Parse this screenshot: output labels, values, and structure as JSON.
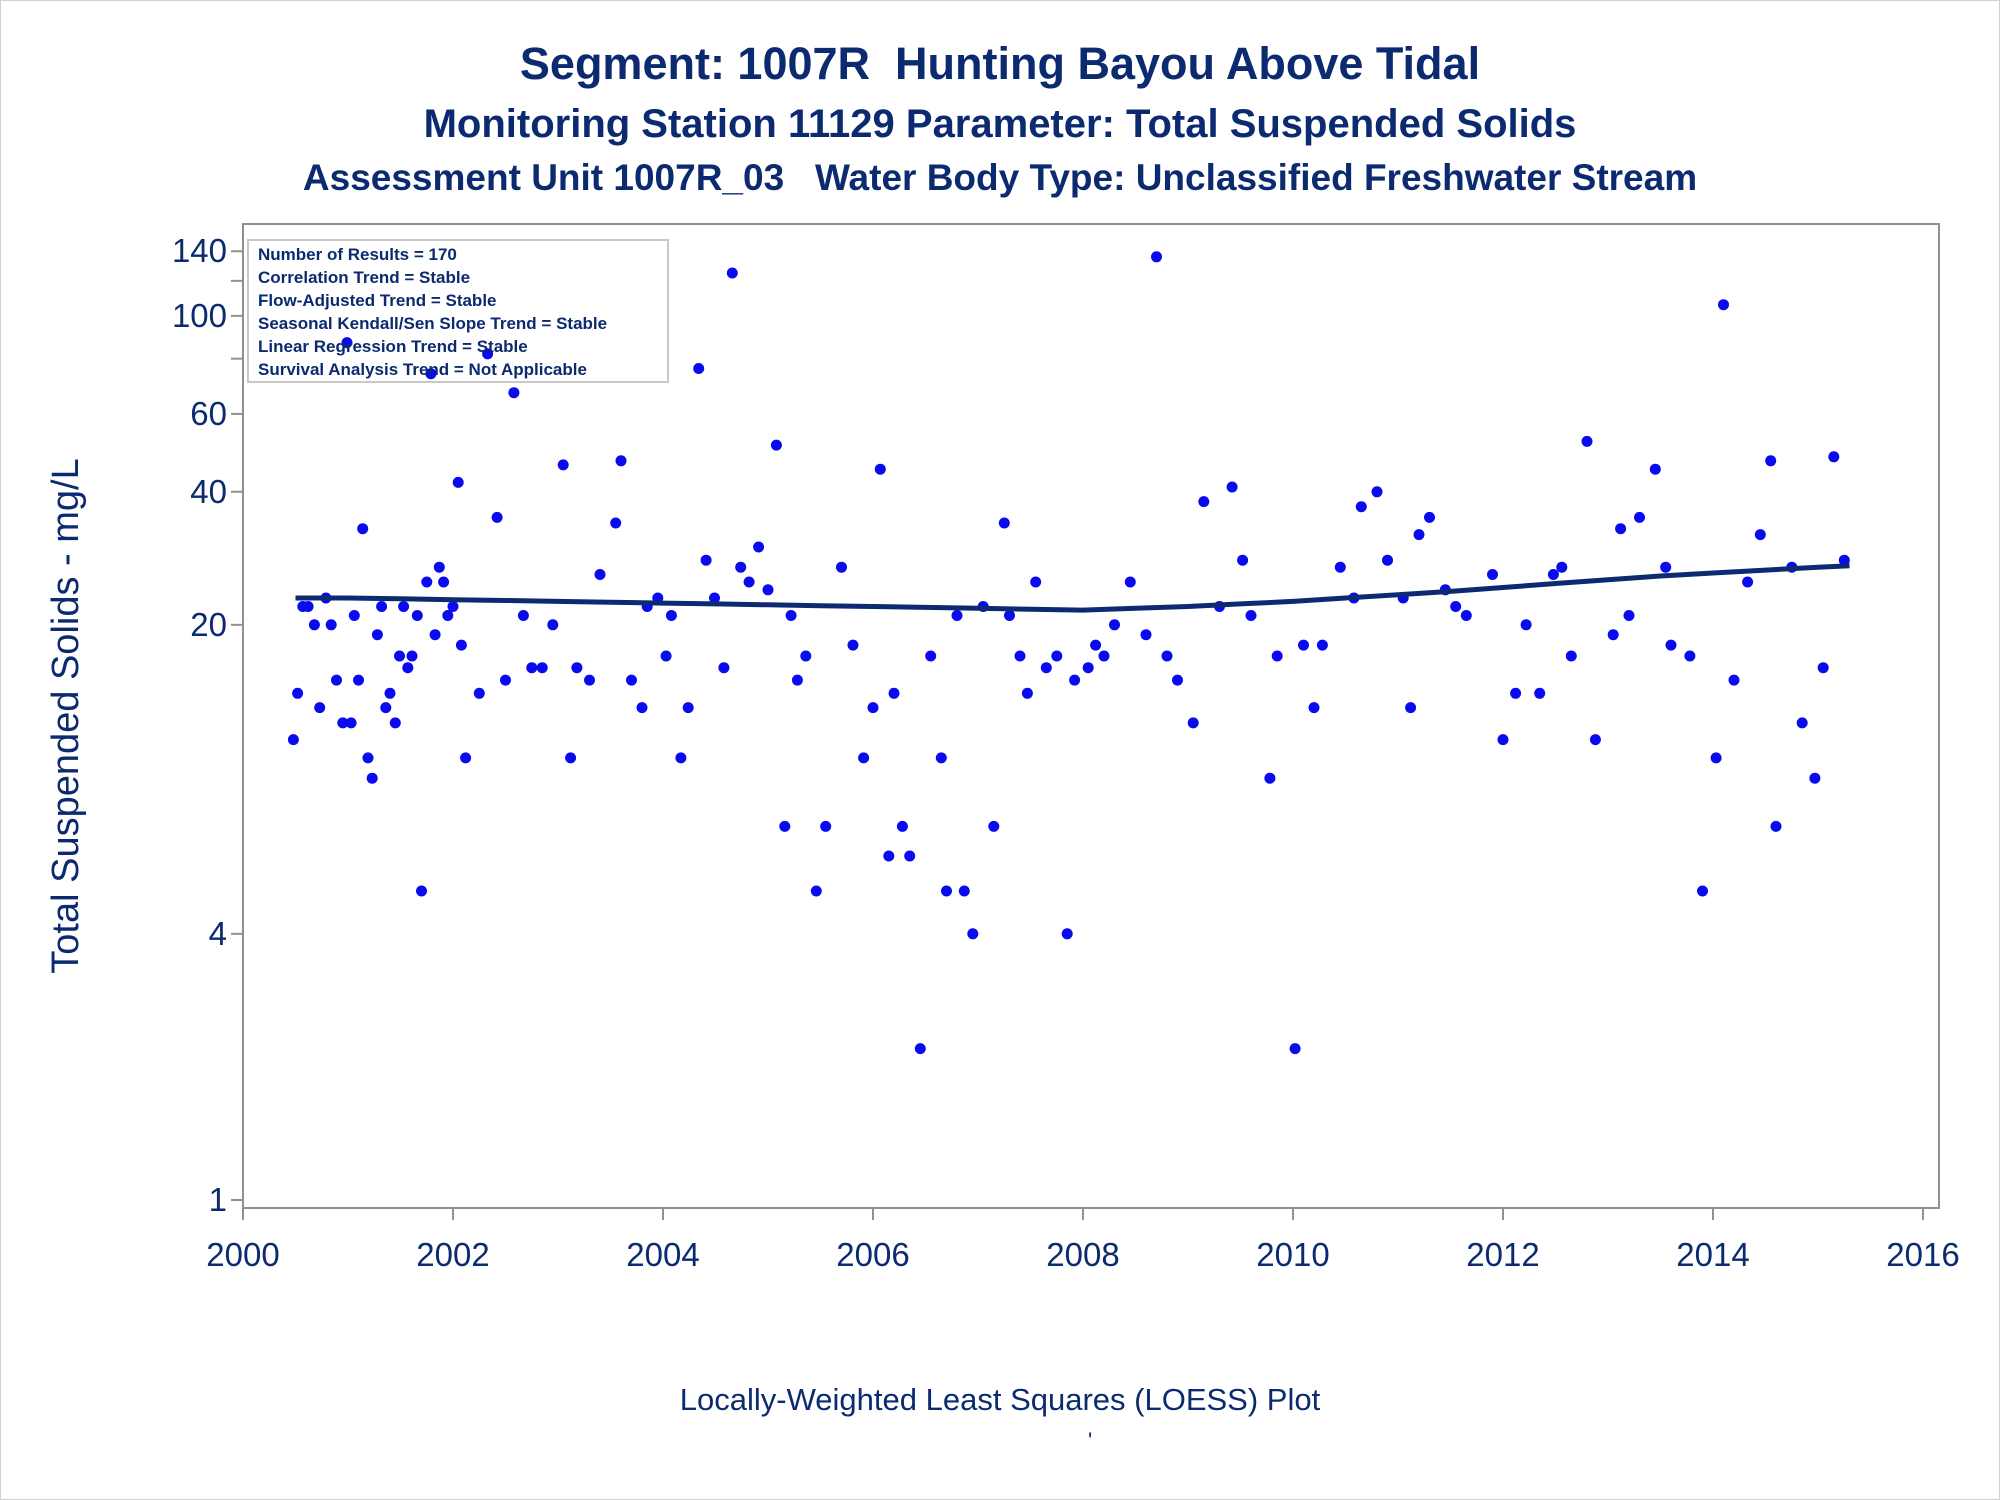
{
  "chart_data": {
    "type": "scatter",
    "title": "Segment: 1007R  Hunting Bayou Above Tidal",
    "subtitle": "Monitoring Station 11129 Parameter: Total Suspended Solids",
    "subtitle2": "Assessment Unit 1007R_03   Water Body Type: Unclassified Freshwater Stream",
    "xlabel": "",
    "ylabel": "Total Suspended Solids - mg/L",
    "footnote": "Locally-Weighted Least Squares (LOESS) Plot",
    "footnote_mark": "'",
    "yscale": "log",
    "ylim": [
      1,
      150
    ],
    "xlim": [
      2000,
      2016
    ],
    "x_ticks": [
      2000,
      2002,
      2004,
      2006,
      2008,
      2010,
      2012,
      2014,
      2016
    ],
    "y_ticks": [
      1,
      4,
      20,
      40,
      60,
      100,
      140
    ],
    "y_minor_ticks": [
      80,
      120
    ],
    "grid": false,
    "legend_placement": "top-left",
    "inset_lines": [
      "Number of Results = 170",
      "Correlation Trend = Stable",
      "Flow-Adjusted Trend = Stable",
      "Seasonal Kendall/Sen Slope Trend = Stable",
      "Linear Regression Trend = Stable",
      "Survival Analysis Trend = Not Applicable"
    ],
    "colors": {
      "points": "#0a0aee",
      "trend": "#0b2a6f",
      "text": "#0b2a6f",
      "axis": "#909090"
    },
    "series": [
      {
        "type": "scatter",
        "points": [
          [
            2000.48,
            11
          ],
          [
            2000.52,
            14
          ],
          [
            2000.57,
            22
          ],
          [
            2000.62,
            22
          ],
          [
            2000.68,
            20
          ],
          [
            2000.73,
            13
          ],
          [
            2000.79,
            23
          ],
          [
            2000.84,
            20
          ],
          [
            2000.89,
            15
          ],
          [
            2000.95,
            12
          ],
          [
            2000.99,
            87
          ],
          [
            2001.03,
            12
          ],
          [
            2001.06,
            21
          ],
          [
            2001.1,
            15
          ],
          [
            2001.14,
            33
          ],
          [
            2001.19,
            10
          ],
          [
            2001.23,
            9
          ],
          [
            2001.28,
            19
          ],
          [
            2001.32,
            22
          ],
          [
            2001.36,
            13
          ],
          [
            2001.4,
            14
          ],
          [
            2001.45,
            12
          ],
          [
            2001.49,
            17
          ],
          [
            2001.53,
            22
          ],
          [
            2001.57,
            16
          ],
          [
            2001.61,
            17
          ],
          [
            2001.66,
            21
          ],
          [
            2001.7,
            5
          ],
          [
            2001.75,
            25
          ],
          [
            2001.79,
            74
          ],
          [
            2001.83,
            19
          ],
          [
            2001.87,
            27
          ],
          [
            2001.91,
            25
          ],
          [
            2001.95,
            21
          ],
          [
            2002.0,
            22
          ],
          [
            2002.05,
            42
          ],
          [
            2002.08,
            18
          ],
          [
            2002.12,
            10
          ],
          [
            2002.25,
            14
          ],
          [
            2002.33,
            82
          ],
          [
            2002.42,
            35
          ],
          [
            2002.5,
            15
          ],
          [
            2002.58,
            67
          ],
          [
            2002.67,
            21
          ],
          [
            2002.75,
            16
          ],
          [
            2002.85,
            16
          ],
          [
            2002.95,
            20
          ],
          [
            2003.05,
            46
          ],
          [
            2003.12,
            10
          ],
          [
            2003.18,
            16
          ],
          [
            2003.3,
            15
          ],
          [
            2003.4,
            26
          ],
          [
            2003.55,
            34
          ],
          [
            2003.6,
            47
          ],
          [
            2003.7,
            15
          ],
          [
            2003.8,
            13
          ],
          [
            2003.85,
            22
          ],
          [
            2003.95,
            23
          ],
          [
            2004.03,
            17
          ],
          [
            2004.08,
            21
          ],
          [
            2004.17,
            10
          ],
          [
            2004.24,
            13
          ],
          [
            2004.34,
            76
          ],
          [
            2004.41,
            28
          ],
          [
            2004.49,
            23
          ],
          [
            2004.58,
            16
          ],
          [
            2004.66,
            125
          ],
          [
            2004.74,
            27
          ],
          [
            2004.82,
            25
          ],
          [
            2004.91,
            30
          ],
          [
            2005.0,
            24
          ],
          [
            2005.08,
            51
          ],
          [
            2005.16,
            7
          ],
          [
            2005.22,
            21
          ],
          [
            2005.28,
            15
          ],
          [
            2005.36,
            17
          ],
          [
            2005.46,
            5
          ],
          [
            2005.55,
            7
          ],
          [
            2005.7,
            27
          ],
          [
            2005.81,
            18
          ],
          [
            2005.91,
            10
          ],
          [
            2006.0,
            13
          ],
          [
            2006.07,
            45
          ],
          [
            2006.15,
            6
          ],
          [
            2006.2,
            14
          ],
          [
            2006.28,
            7
          ],
          [
            2006.35,
            6
          ],
          [
            2006.45,
            2.2
          ],
          [
            2006.55,
            17
          ],
          [
            2006.65,
            10
          ],
          [
            2006.7,
            5
          ],
          [
            2006.8,
            21
          ],
          [
            2006.87,
            5
          ],
          [
            2006.95,
            4
          ],
          [
            2007.05,
            22
          ],
          [
            2007.15,
            7
          ],
          [
            2007.25,
            34
          ],
          [
            2007.3,
            21
          ],
          [
            2007.4,
            17
          ],
          [
            2007.47,
            14
          ],
          [
            2007.55,
            25
          ],
          [
            2007.65,
            16
          ],
          [
            2007.75,
            17
          ],
          [
            2007.85,
            4
          ],
          [
            2007.92,
            15
          ],
          [
            2008.05,
            16
          ],
          [
            2008.12,
            18
          ],
          [
            2008.2,
            17
          ],
          [
            2008.3,
            20
          ],
          [
            2008.45,
            25
          ],
          [
            2008.6,
            19
          ],
          [
            2008.7,
            136
          ],
          [
            2008.8,
            17
          ],
          [
            2008.9,
            15
          ],
          [
            2009.05,
            12
          ],
          [
            2009.15,
            38
          ],
          [
            2009.3,
            22
          ],
          [
            2009.42,
            41
          ],
          [
            2009.52,
            28
          ],
          [
            2009.6,
            21
          ],
          [
            2009.78,
            9
          ],
          [
            2009.85,
            17
          ],
          [
            2010.02,
            2.2
          ],
          [
            2010.1,
            18
          ],
          [
            2010.2,
            13
          ],
          [
            2010.28,
            18
          ],
          [
            2010.45,
            27
          ],
          [
            2010.58,
            23
          ],
          [
            2010.65,
            37
          ],
          [
            2010.8,
            40
          ],
          [
            2010.9,
            28
          ],
          [
            2011.05,
            23
          ],
          [
            2011.12,
            13
          ],
          [
            2011.2,
            32
          ],
          [
            2011.3,
            35
          ],
          [
            2011.45,
            24
          ],
          [
            2011.55,
            22
          ],
          [
            2011.65,
            21
          ],
          [
            2011.9,
            26
          ],
          [
            2012.0,
            11
          ],
          [
            2012.12,
            14
          ],
          [
            2012.22,
            20
          ],
          [
            2012.35,
            14
          ],
          [
            2012.48,
            26
          ],
          [
            2012.56,
            27
          ],
          [
            2012.65,
            17
          ],
          [
            2012.8,
            52
          ],
          [
            2012.88,
            11
          ],
          [
            2013.05,
            19
          ],
          [
            2013.12,
            33
          ],
          [
            2013.2,
            21
          ],
          [
            2013.3,
            35
          ],
          [
            2013.45,
            45
          ],
          [
            2013.55,
            27
          ],
          [
            2013.6,
            18
          ],
          [
            2013.78,
            17
          ],
          [
            2013.9,
            5
          ],
          [
            2014.03,
            10
          ],
          [
            2014.1,
            106
          ],
          [
            2014.2,
            15
          ],
          [
            2014.33,
            25
          ],
          [
            2014.45,
            32
          ],
          [
            2014.55,
            47
          ],
          [
            2014.6,
            7
          ],
          [
            2014.75,
            27
          ],
          [
            2014.85,
            12
          ],
          [
            2014.97,
            9
          ],
          [
            2015.05,
            16
          ],
          [
            2015.15,
            48
          ],
          [
            2015.25,
            28
          ]
        ]
      },
      {
        "type": "line",
        "x": [
          2000.5,
          2001.0,
          2001.5,
          2002.0,
          2002.5,
          2003.0,
          2003.5,
          2004.0,
          2004.5,
          2005.0,
          2005.5,
          2006.0,
          2006.5,
          2007.0,
          2007.5,
          2008.0,
          2008.5,
          2009.0,
          2009.5,
          2010.0,
          2010.5,
          2011.0,
          2011.5,
          2012.0,
          2012.5,
          2013.0,
          2013.5,
          2014.0,
          2014.5,
          2015.0,
          2015.3
        ],
        "y": [
          23.0,
          23.0,
          22.9,
          22.8,
          22.7,
          22.6,
          22.5,
          22.4,
          22.3,
          22.2,
          22.1,
          22.0,
          21.9,
          21.8,
          21.7,
          21.6,
          21.8,
          22.0,
          22.3,
          22.6,
          23.0,
          23.4,
          23.8,
          24.3,
          24.8,
          25.3,
          25.8,
          26.2,
          26.6,
          27.0,
          27.2
        ]
      }
    ]
  }
}
